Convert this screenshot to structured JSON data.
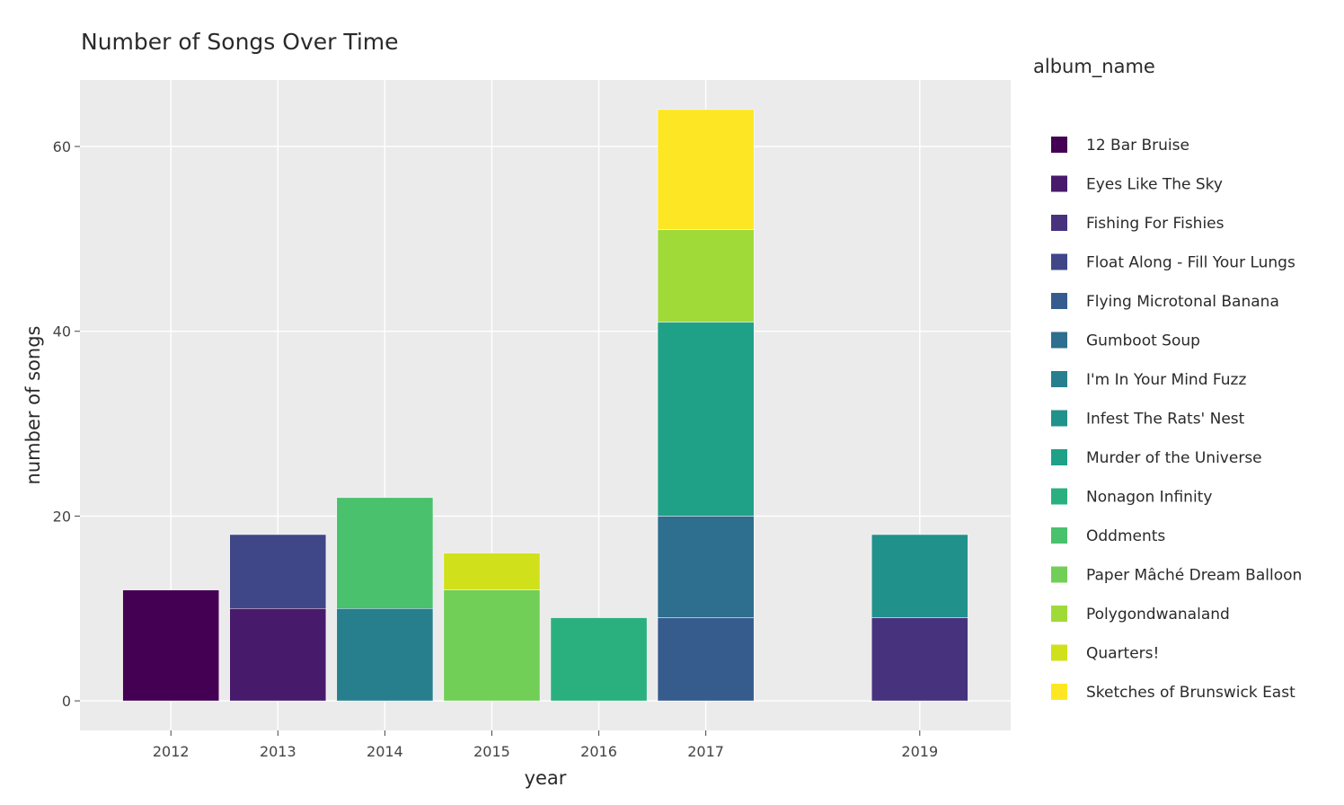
{
  "chart_data": {
    "type": "bar",
    "stacked": true,
    "title": "Number of Songs Over Time",
    "xlabel": "year",
    "ylabel": "number of songs",
    "categories": [
      "2012",
      "2013",
      "2014",
      "2015",
      "2016",
      "2017",
      "2019"
    ],
    "x_values": [
      2012,
      2013,
      2014,
      2015,
      2016,
      2017,
      2019
    ],
    "xlim": [
      2011.15,
      2019.85
    ],
    "ylim": [
      -3.2,
      67.2
    ],
    "y_ticks": [
      0,
      20,
      40,
      60
    ],
    "grid": true,
    "legend_title": "album_name",
    "legend_position": "right",
    "series": [
      {
        "name": "12 Bar Bruise",
        "color": "#440154",
        "values": [
          12,
          0,
          0,
          0,
          0,
          0,
          0
        ]
      },
      {
        "name": "Eyes Like The Sky",
        "color": "#481a6c",
        "values": [
          0,
          10,
          0,
          0,
          0,
          0,
          0
        ]
      },
      {
        "name": "Fishing For Fishies",
        "color": "#47327e",
        "values": [
          0,
          0,
          0,
          0,
          0,
          0,
          9
        ]
      },
      {
        "name": "Float Along - Fill Your Lungs",
        "color": "#3f4788",
        "values": [
          0,
          8,
          0,
          0,
          0,
          0,
          0
        ]
      },
      {
        "name": "Flying Microtonal Banana",
        "color": "#365c8d",
        "values": [
          0,
          0,
          0,
          0,
          0,
          9,
          0
        ]
      },
      {
        "name": "Gumboot Soup",
        "color": "#2e6e8e",
        "values": [
          0,
          0,
          0,
          0,
          0,
          11,
          0
        ]
      },
      {
        "name": "I'm In Your Mind Fuzz",
        "color": "#277f8e",
        "values": [
          0,
          0,
          10,
          0,
          0,
          0,
          0
        ]
      },
      {
        "name": "Infest The Rats' Nest",
        "color": "#21918c",
        "values": [
          0,
          0,
          0,
          0,
          0,
          0,
          9
        ]
      },
      {
        "name": "Murder of the Universe",
        "color": "#1fa188",
        "values": [
          0,
          0,
          0,
          0,
          0,
          21,
          0
        ]
      },
      {
        "name": "Nonagon Infinity",
        "color": "#2ab07f",
        "values": [
          0,
          0,
          0,
          0,
          9,
          0,
          0
        ]
      },
      {
        "name": "Oddments",
        "color": "#4ac16d",
        "values": [
          0,
          0,
          12,
          0,
          0,
          0,
          0
        ]
      },
      {
        "name": "Paper Mâché Dream Balloon",
        "color": "#71cf57",
        "values": [
          0,
          0,
          0,
          12,
          0,
          0,
          0
        ]
      },
      {
        "name": "Polygondwanaland",
        "color": "#a0da39",
        "values": [
          0,
          0,
          0,
          0,
          0,
          10,
          0
        ]
      },
      {
        "name": "Quarters!",
        "color": "#d0e11c",
        "values": [
          0,
          0,
          0,
          4,
          0,
          0,
          0
        ]
      },
      {
        "name": "Sketches of Brunswick East",
        "color": "#fde725",
        "values": [
          0,
          0,
          0,
          0,
          0,
          13,
          0
        ]
      }
    ],
    "plot_background": "#ebebeb",
    "grid_color": "#ffffff"
  }
}
